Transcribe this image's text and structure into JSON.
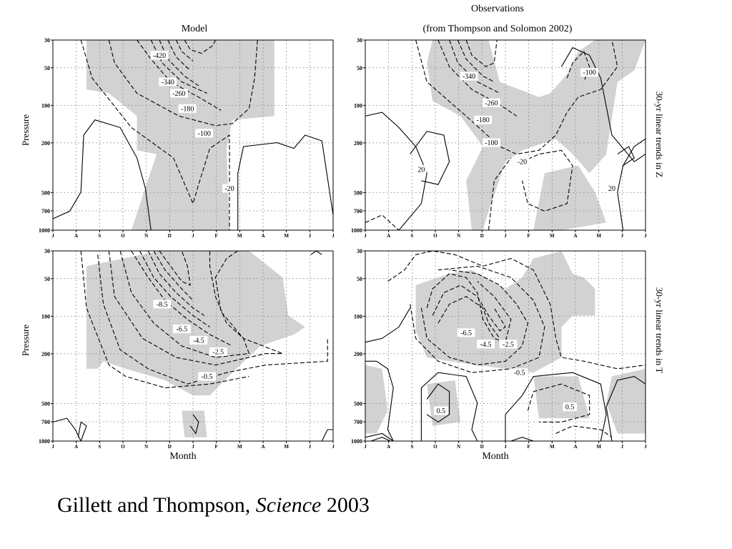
{
  "figure": {
    "column_titles": [
      "Model",
      "Observations"
    ],
    "column_subtitle": "(from Thompson and Solomon 2002)",
    "row_labels": [
      "30-yr linear trends in Z",
      "30-yr linear trends in T"
    ],
    "ylabel": "Pressure",
    "xlabel": "Month"
  },
  "caption": {
    "authors": "Gillett and Thompson,",
    "journal": "Science",
    "year": "2003"
  },
  "chart_data": [
    {
      "type": "contour",
      "panel": "model-Z",
      "title": "Model",
      "ylabel": "Pressure",
      "xlabel": "",
      "x": [
        "J",
        "A",
        "S",
        "O",
        "N",
        "D",
        "J",
        "F",
        "M",
        "A",
        "M",
        "J",
        "J"
      ],
      "y_ticks": [
        "30",
        "50",
        "100",
        "200",
        "500",
        "700",
        "1000"
      ],
      "y_values": [
        30,
        50,
        100,
        200,
        500,
        700,
        1000
      ],
      "y_scale": "log-inverted",
      "grid": true,
      "contour_labels": [
        "-420",
        "-340",
        "-260",
        "-180",
        "-100",
        "-20"
      ],
      "shading": "significant"
    },
    {
      "type": "contour",
      "panel": "obs-Z",
      "title": "Observations",
      "subtitle": "(from Thompson and Solomon 2002)",
      "side_label": "30-yr linear trends in Z",
      "x": [
        "J",
        "A",
        "S",
        "O",
        "N",
        "D",
        "J",
        "F",
        "M",
        "A",
        "M",
        "J",
        "J"
      ],
      "y_ticks": [
        "30",
        "50",
        "100",
        "200",
        "500",
        "700",
        "1000"
      ],
      "y_values": [
        30,
        50,
        100,
        200,
        500,
        700,
        1000
      ],
      "y_scale": "log-inverted",
      "grid": true,
      "contour_labels": [
        "-340",
        "-260",
        "-180",
        "-100",
        "-100",
        "20",
        "-20",
        "20"
      ],
      "shading": "significant"
    },
    {
      "type": "contour",
      "panel": "model-T",
      "ylabel": "Pressure",
      "xlabel": "Month",
      "x": [
        "J",
        "A",
        "S",
        "O",
        "N",
        "D",
        "J",
        "F",
        "M",
        "A",
        "M",
        "J",
        "J"
      ],
      "y_ticks": [
        "30",
        "50",
        "100",
        "200",
        "500",
        "700",
        "1000"
      ],
      "y_values": [
        30,
        50,
        100,
        200,
        500,
        700,
        1000
      ],
      "y_scale": "log-inverted",
      "grid": true,
      "contour_labels": [
        "-8.5",
        "-6.5",
        "-4.5",
        "-2.5",
        "-0.5"
      ],
      "shading": "significant"
    },
    {
      "type": "contour",
      "panel": "obs-T",
      "side_label": "30-yr linear trends in T",
      "xlabel": "Month",
      "x": [
        "J",
        "A",
        "S",
        "O",
        "N",
        "D",
        "J",
        "F",
        "M",
        "A",
        "M",
        "J",
        "J"
      ],
      "y_ticks": [
        "30",
        "50",
        "100",
        "200",
        "500",
        "700",
        "1000"
      ],
      "y_values": [
        30,
        50,
        100,
        200,
        500,
        700,
        1000
      ],
      "y_scale": "log-inverted",
      "grid": true,
      "contour_labels": [
        "-6.5",
        "-4.5",
        "-2.5",
        "-0.5",
        "0.5",
        "0.5"
      ],
      "shading": "significant"
    }
  ]
}
